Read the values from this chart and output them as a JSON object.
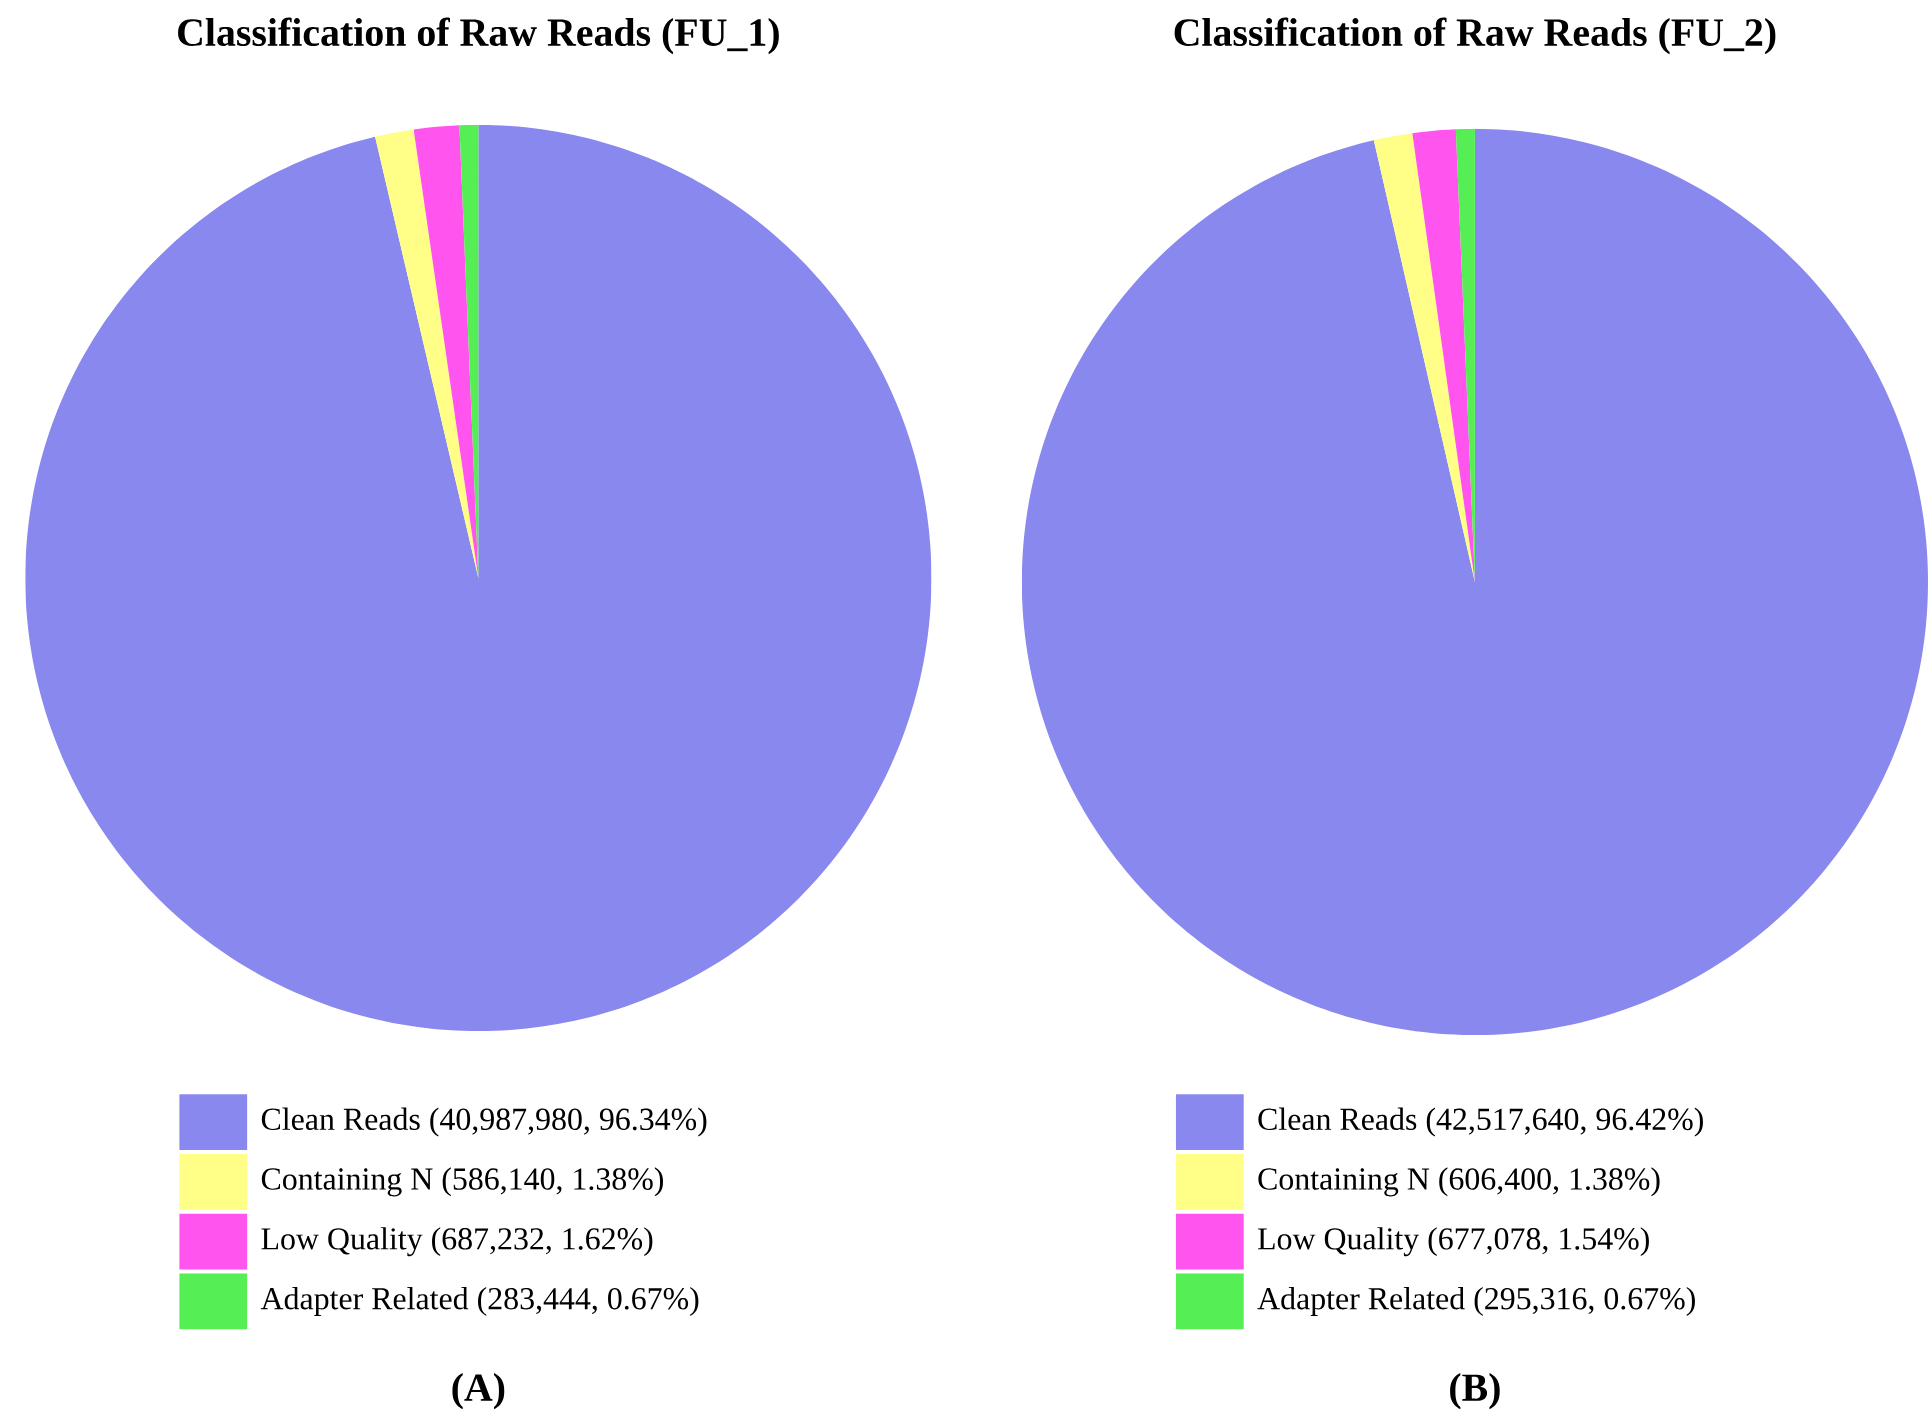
{
  "chart_data": [
    {
      "type": "pie",
      "title": "Classification of Raw Reads (FU_1)",
      "categories": [
        "Clean Reads (40,987,980, 96.34%)",
        "Containing N (586,140, 1.38%)",
        "Low Quality (687,232, 1.62%)",
        "Adapter Related (283,444, 0.67%)"
      ],
      "values": [
        40987980,
        586140,
        687232,
        283444
      ],
      "colors": [
        "#8888ee",
        "#ffff88",
        "#ff55ee",
        "#55ee55"
      ],
      "legend": "bottom",
      "annotations": [
        "(A)"
      ]
    },
    {
      "type": "pie",
      "title": "Classification of Raw Reads (FU_2)",
      "categories": [
        "Clean Reads (42,517,640, 96.42%)",
        "Containing N (606,400, 1.38%)",
        "Low Quality (677,078, 1.54%)",
        "Adapter Related (295,316, 0.67%)"
      ],
      "values": [
        42517640,
        606400,
        677078,
        295316
      ],
      "colors": [
        "#8888ee",
        "#ffff88",
        "#ff55ee",
        "#55ee55"
      ],
      "legend": "bottom",
      "annotations": [
        "(B)"
      ]
    }
  ]
}
